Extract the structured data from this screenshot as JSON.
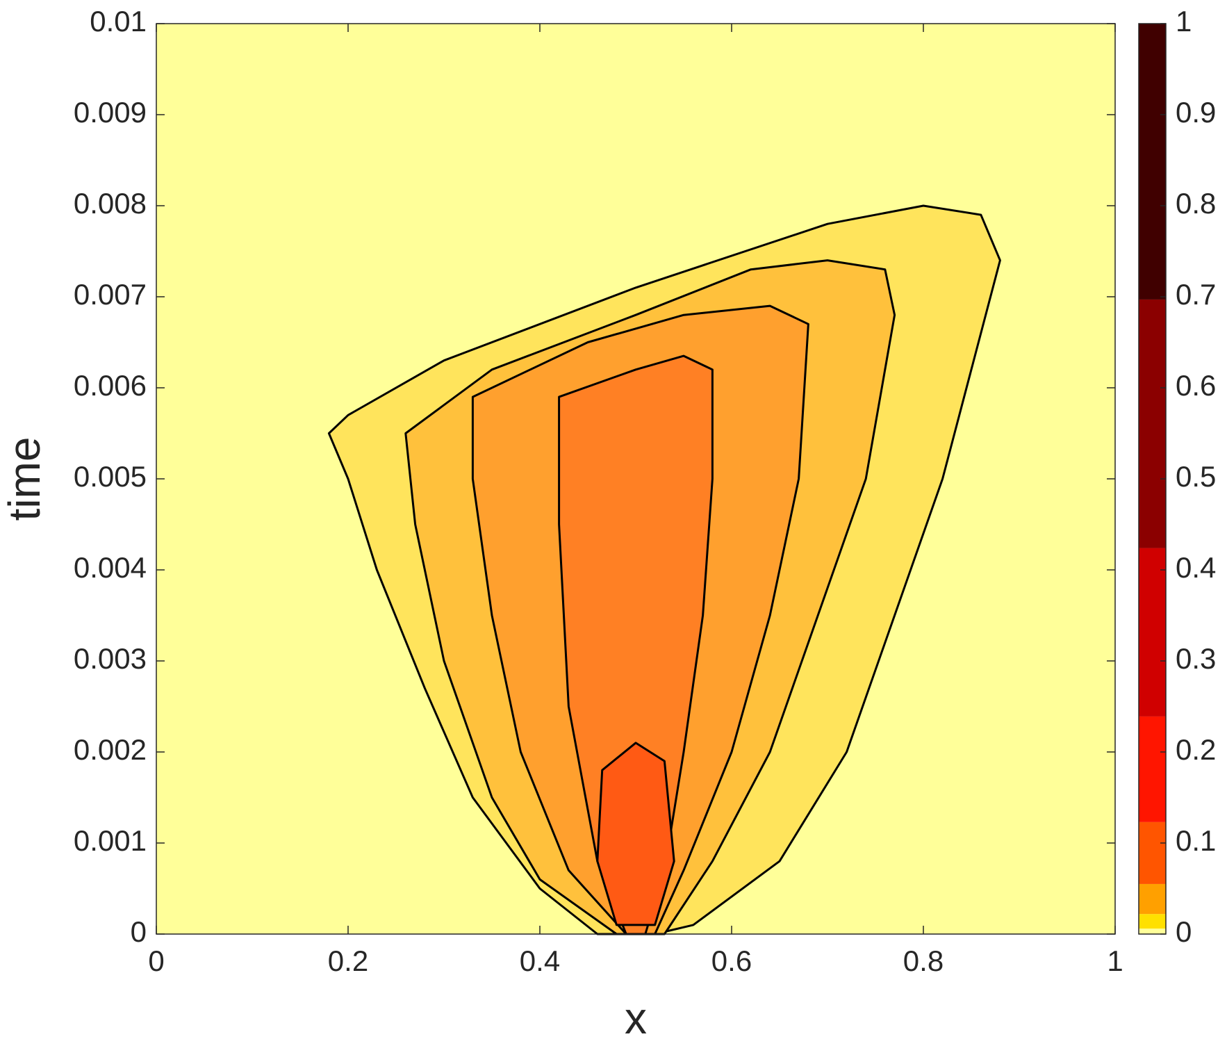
{
  "chart_data": {
    "type": "contour",
    "xlabel": "x",
    "ylabel": "time",
    "xlim": [
      0,
      1
    ],
    "ylim": [
      0,
      0.01
    ],
    "xticks": [
      0,
      0.2,
      0.4,
      0.6,
      0.8,
      1
    ],
    "yticks": [
      0,
      0.001,
      0.002,
      0.003,
      0.004,
      0.005,
      0.006,
      0.007,
      0.008,
      0.009,
      0.01
    ],
    "background": "#ffff99",
    "series": [
      {
        "color": "#ffe45c",
        "x": [
          0.46,
          0.4,
          0.33,
          0.28,
          0.23,
          0.2,
          0.18,
          0.2,
          0.3,
          0.5,
          0.7,
          0.8,
          0.86,
          0.88,
          0.82,
          0.77,
          0.72,
          0.65,
          0.56,
          0.52
        ],
        "y": [
          0,
          0.0005,
          0.0015,
          0.0027,
          0.004,
          0.005,
          0.0055,
          0.0057,
          0.0063,
          0.0071,
          0.0078,
          0.008,
          0.0079,
          0.0074,
          0.005,
          0.0035,
          0.002,
          0.0008,
          0.0001,
          0
        ]
      },
      {
        "color": "#ffc13c",
        "x": [
          0.48,
          0.4,
          0.35,
          0.3,
          0.27,
          0.26,
          0.35,
          0.5,
          0.62,
          0.7,
          0.76,
          0.77,
          0.74,
          0.69,
          0.64,
          0.58,
          0.53
        ],
        "y": [
          0,
          0.0006,
          0.0015,
          0.003,
          0.0045,
          0.0055,
          0.0062,
          0.0068,
          0.0073,
          0.0074,
          0.0073,
          0.0068,
          0.005,
          0.0035,
          0.002,
          0.0008,
          0
        ]
      },
      {
        "color": "#ffa02e",
        "x": [
          0.49,
          0.43,
          0.38,
          0.35,
          0.33,
          0.33,
          0.45,
          0.55,
          0.64,
          0.68,
          0.67,
          0.64,
          0.6,
          0.55,
          0.52
        ],
        "y": [
          0,
          0.0007,
          0.002,
          0.0035,
          0.005,
          0.0059,
          0.0065,
          0.0068,
          0.0069,
          0.0067,
          0.005,
          0.0035,
          0.002,
          0.0007,
          0
        ]
      },
      {
        "color": "#ff8024",
        "x": [
          0.49,
          0.46,
          0.43,
          0.42,
          0.42,
          0.5,
          0.55,
          0.58,
          0.58,
          0.57,
          0.55,
          0.53,
          0.51
        ],
        "y": [
          0,
          0.0008,
          0.0025,
          0.0045,
          0.0059,
          0.0062,
          0.00635,
          0.0062,
          0.005,
          0.0035,
          0.002,
          0.0007,
          0
        ]
      },
      {
        "color": "#ff5a14",
        "x": [
          0.48,
          0.46,
          0.465,
          0.5,
          0.53,
          0.54,
          0.52
        ],
        "y": [
          0.0001,
          0.0008,
          0.0018,
          0.0021,
          0.0019,
          0.0008,
          0.0001
        ]
      }
    ],
    "colorbar": {
      "lim": [
        0,
        1
      ],
      "ticks": [
        0,
        0.1,
        0.2,
        0.3,
        0.4,
        0.5,
        0.6,
        0.7,
        0.8,
        0.9,
        1
      ],
      "levels": [
        0,
        0.006,
        0.022,
        0.055,
        0.123,
        0.239,
        0.424,
        0.697,
        1
      ],
      "colors": [
        "#ffff99",
        "#ffe000",
        "#ffa000",
        "#ff5500",
        "#ff1500",
        "#d00000",
        "#8b0000",
        "#400000"
      ]
    }
  }
}
